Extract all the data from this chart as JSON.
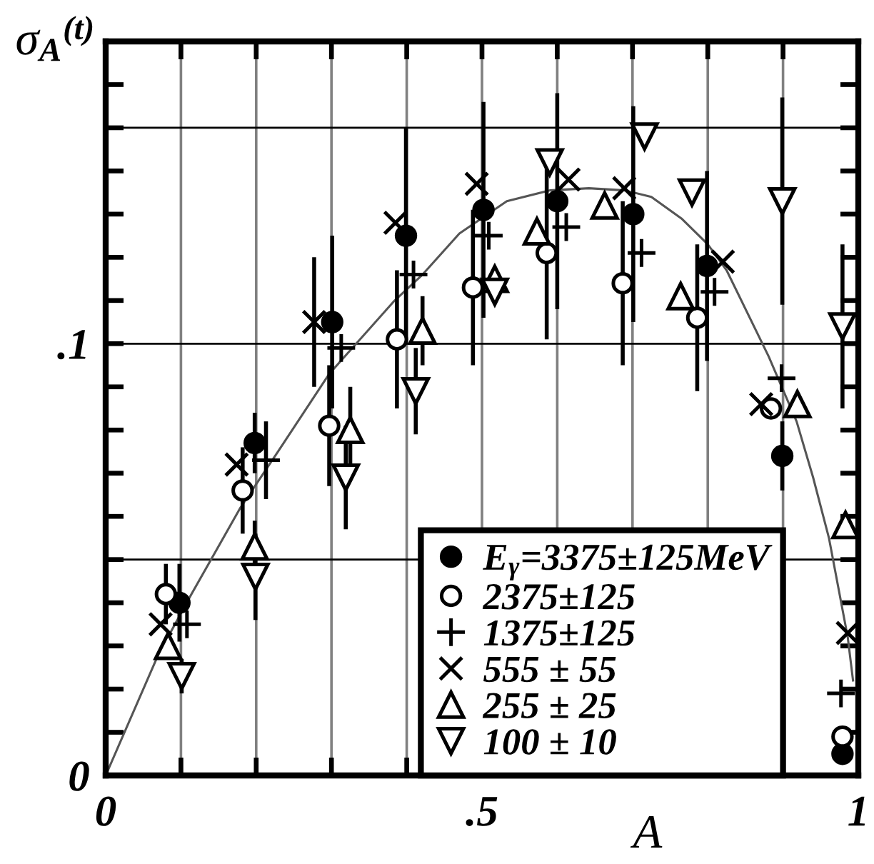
{
  "chart_data": {
    "type": "scatter",
    "xlabel": "A",
    "ylabel": "σ$_{A}$$^{(t)}$",
    "xlim": [
      0,
      1
    ],
    "ylim": [
      0,
      0.17
    ],
    "xticks": [
      0,
      {
        "value": 0.1,
        "label": null
      },
      {
        "value": 0.2,
        "label": null
      },
      {
        "value": 0.3,
        "label": null
      },
      {
        "value": 0.4,
        "label": null
      },
      {
        "value": 0.5,
        "label": ".5"
      },
      {
        "value": 0.6,
        "label": null
      },
      {
        "value": 0.7,
        "label": null
      },
      {
        "value": 0.8,
        "label": null
      },
      {
        "value": 0.9,
        "label": null
      },
      1
    ],
    "yticks": [
      0,
      {
        "value": 0.05,
        "label": null
      },
      {
        "value": 0.1,
        "label": ".1"
      },
      {
        "value": 0.15,
        "label": null
      }
    ],
    "grid": true,
    "legend": "bottom right",
    "series": [
      {
        "name": "E$_{γ}$=3375±125MeV",
        "color": "#000000",
        "marker": "circle",
        "x": [
          0.098,
          0.198,
          0.301,
          0.399,
          0.502,
          0.6,
          0.701,
          0.799,
          0.899,
          0.979
        ],
        "values": [
          0.04,
          0.077,
          0.105,
          0.125,
          0.131,
          0.133,
          0.13,
          0.118,
          0.074,
          0.005
        ],
        "errors": [
          0.009,
          0.007,
          0.02,
          0.025,
          0.025,
          0.025,
          0.025,
          0.022,
          0.008,
          null
        ]
      },
      {
        "name": "2375±125",
        "color": "#000000",
        "marker": "circle-open",
        "x": [
          0.08,
          0.182,
          0.297,
          0.387,
          0.488,
          0.586,
          0.687,
          0.786,
          0.884,
          0.979
        ],
        "values": [
          0.042,
          0.066,
          0.081,
          0.101,
          0.113,
          0.121,
          0.114,
          0.106,
          0.085,
          0.009
        ],
        "errors": [
          0.007,
          0.01,
          0.014,
          0.016,
          0.018,
          0.02,
          0.019,
          0.017,
          null,
          null
        ]
      },
      {
        "name": "1375±125",
        "color": "#000000",
        "marker": "cross",
        "x": [
          0.108,
          0.213,
          0.313,
          0.409,
          0.509,
          0.612,
          0.712,
          0.809,
          0.898,
          0.977
        ],
        "values": [
          0.035,
          0.073,
          0.099,
          0.116,
          0.125,
          0.127,
          0.121,
          0.112,
          0.092,
          0.019
        ],
        "errors": [
          null,
          0.009,
          null,
          null,
          null,
          null,
          null,
          null,
          null,
          null
        ]
      },
      {
        "name": "555 ± 55",
        "color": "#000000",
        "marker": "x",
        "x": [
          0.073,
          0.174,
          0.277,
          0.385,
          0.493,
          0.615,
          0.689,
          0.82,
          0.871,
          0.986
        ],
        "values": [
          0.035,
          0.072,
          0.105,
          0.128,
          0.137,
          0.138,
          0.136,
          0.119,
          0.086,
          0.033
        ],
        "errors": [
          null,
          null,
          0.015,
          null,
          null,
          null,
          null,
          null,
          null,
          null
        ]
      },
      {
        "name": "255 ± 25",
        "color": "#000000",
        "marker": "triangle-up-open",
        "x": [
          0.083,
          0.198,
          0.325,
          0.421,
          0.517,
          0.573,
          0.663,
          0.764,
          0.919,
          0.983
        ],
        "values": [
          0.03,
          0.053,
          0.08,
          0.103,
          0.115,
          0.126,
          0.132,
          0.111,
          0.086,
          0.058
        ],
        "errors": [
          null,
          0.006,
          0.01,
          0.008,
          null,
          null,
          null,
          null,
          null,
          null
        ]
      },
      {
        "name": "100 ± 10",
        "color": "#000000",
        "marker": "triangle-down-open",
        "x": [
          0.101,
          0.199,
          0.319,
          0.412,
          0.517,
          0.59,
          0.716,
          0.779,
          0.899,
          0.979
        ],
        "values": [
          0.023,
          0.046,
          0.069,
          0.089,
          0.112,
          0.142,
          0.148,
          0.135,
          0.133,
          0.104
        ],
        "errors": [
          0.004,
          0.01,
          0.012,
          0.01,
          null,
          null,
          null,
          null,
          0.024,
          0.019
        ]
      },
      {
        "type": "line",
        "color": "#555555",
        "marker": "none",
        "x": [
          0,
          0.07,
          0.114,
          0.179,
          0.229,
          0.297,
          0.384,
          0.421,
          0.47,
          0.533,
          0.59,
          0.642,
          0.69,
          0.725,
          0.765,
          0.8,
          0.825,
          0.881,
          0.918,
          0.94,
          0.961,
          0.986,
          0.993
        ],
        "values": [
          0,
          0.028,
          0.042,
          0.062,
          0.075,
          0.093,
          0.11,
          0.116,
          0.1255,
          0.133,
          0.1355,
          0.136,
          0.1355,
          0.134,
          0.129,
          0.123,
          0.117,
          0.097,
          0.082,
          0.069,
          0.055,
          0.032,
          0.022
        ]
      }
    ]
  }
}
